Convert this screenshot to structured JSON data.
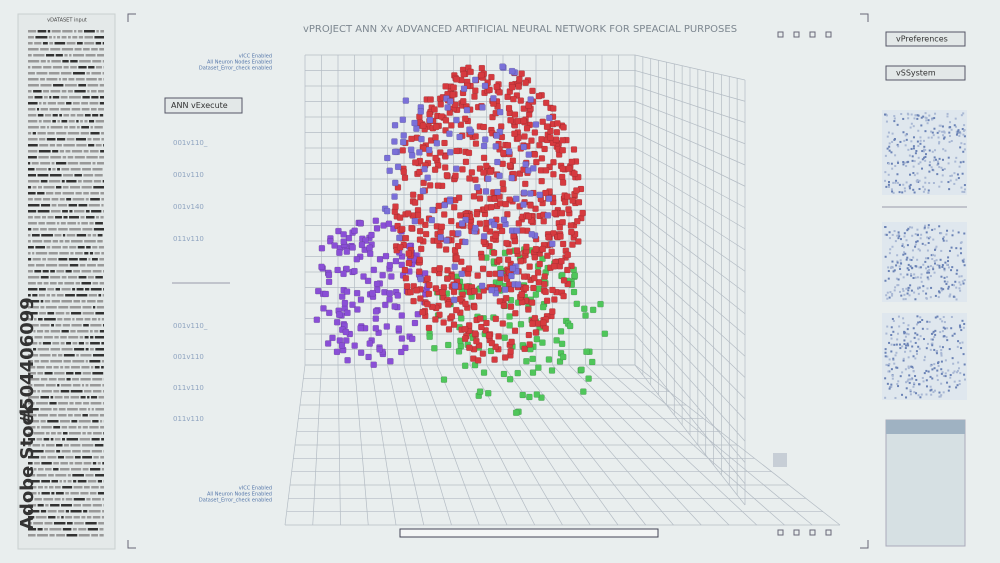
{
  "header": {
    "title": "vPROJECT ANN Xv ADVANCED ARTIFICIAL NEURAL NETWORK FOR SPEACIAL PURPOSES"
  },
  "buttons": {
    "preferences": "vPreferences",
    "system": "vSSystem",
    "execute": "ANN vExecute"
  },
  "left_panel": {
    "title": "vDATASET input"
  },
  "status_top": [
    "vICC Enabled",
    "All Neuron Nodes Enabled",
    "Dataset_Error_check enabled"
  ],
  "status_bottom": [
    "vICC Enabled",
    "All Neuron Nodes Enabled",
    "Dataset_Error_check enabled"
  ],
  "axis_labels": [
    "001v110_",
    "001v110",
    "001v140",
    "011v110",
    "001v110_",
    "001v110",
    "011v110",
    "011v110"
  ],
  "watermark": {
    "brand": "Adobe Stock",
    "id": "#504406099"
  }
}
